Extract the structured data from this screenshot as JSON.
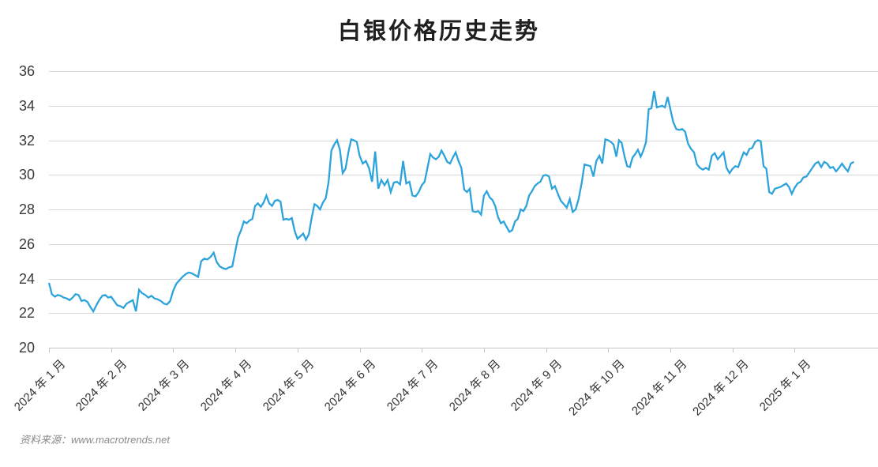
{
  "title": "白银价格历史走势",
  "source_note": "资料来源：www.macrotrends.net",
  "colors": {
    "line": "#2da3dc",
    "grid": "#d9d9d9",
    "axis_line": "#c4c4c4",
    "tick": "#c4c4c4",
    "axis_label": "#3a3a3a",
    "title_text": "#1f1f1f",
    "source_text": "#8a8a8a",
    "background": "#ffffff"
  },
  "chart_data": {
    "type": "line",
    "title": "白银价格历史走势",
    "xlabel": "",
    "ylabel": "",
    "ylim": [
      20,
      36
    ],
    "y_ticks": [
      20,
      22,
      24,
      26,
      28,
      30,
      32,
      34,
      36
    ],
    "grid": "horizontal",
    "legend": "none",
    "line_style": "solid",
    "series": [
      {
        "name": "白银价格",
        "months": [
          {
            "label": "2024 年 1 月",
            "values": [
              23.75,
              23.1,
              22.95,
              23.05,
              23.0,
              22.9,
              22.85,
              22.75,
              22.9,
              23.1,
              23.05,
              22.7,
              22.75,
              22.65,
              22.35,
              22.1,
              22.45,
              22.75,
              23.0,
              23.05,
              22.9
            ]
          },
          {
            "label": "2024 年 2 月",
            "values": [
              22.95,
              22.7,
              22.45,
              22.4,
              22.3,
              22.55,
              22.65,
              22.75,
              22.1,
              23.35,
              23.15,
              23.05,
              22.9,
              23.0,
              22.85,
              22.8,
              22.7,
              22.55,
              22.5,
              22.7
            ]
          },
          {
            "label": "2024 年 3 月",
            "values": [
              23.3,
              23.7,
              23.9,
              24.1,
              24.25,
              24.35,
              24.3,
              24.2,
              24.1,
              25.0,
              25.15,
              25.1,
              25.25,
              25.5,
              24.95,
              24.7,
              24.6,
              24.55,
              24.65,
              24.7
            ]
          },
          {
            "label": "2024 年 4 月",
            "values": [
              25.6,
              26.4,
              26.8,
              27.3,
              27.2,
              27.35,
              27.45,
              28.2,
              28.35,
              28.15,
              28.4,
              28.8,
              28.35,
              28.2,
              28.5,
              28.55,
              28.45,
              27.4,
              27.45,
              27.4,
              27.5,
              26.75
            ]
          },
          {
            "label": "2024 年 5 月",
            "values": [
              26.3,
              26.45,
              26.6,
              26.25,
              26.55,
              27.5,
              28.3,
              28.2,
              28.0,
              28.4,
              28.65,
              29.6,
              31.4,
              31.75,
              32.0,
              31.45,
              30.1,
              30.35,
              31.3,
              32.05,
              32.0,
              31.9
            ]
          },
          {
            "label": "2024 年 6 月",
            "values": [
              31.1,
              30.65,
              30.8,
              30.4,
              29.6,
              31.35,
              29.2,
              29.7,
              29.4,
              29.7,
              29.0,
              29.55,
              29.6,
              29.45,
              30.8,
              29.5,
              29.6,
              28.8,
              28.75,
              29.0
            ]
          },
          {
            "label": "2024 年 7 月",
            "values": [
              29.4,
              29.6,
              30.4,
              31.2,
              31.0,
              30.9,
              31.05,
              31.4,
              31.1,
              30.75,
              30.65,
              31.0,
              31.3,
              30.8,
              30.4,
              29.15,
              29.0,
              29.2,
              27.9,
              27.85,
              27.9,
              27.7
            ]
          },
          {
            "label": "2024 年 8 月",
            "values": [
              28.8,
              29.05,
              28.7,
              28.55,
              28.2,
              27.55,
              27.2,
              27.3,
              27.0,
              26.7,
              26.8,
              27.3,
              27.45,
              28.0,
              27.9,
              28.2,
              28.8,
              29.05,
              29.35,
              29.5,
              29.6,
              29.95
            ]
          },
          {
            "label": "2024 年 9 月",
            "values": [
              30.0,
              29.9,
              29.2,
              29.35,
              28.9,
              28.5,
              28.3,
              28.1,
              28.6,
              27.85,
              28.0,
              28.6,
              29.5,
              30.6,
              30.55,
              30.5,
              29.9,
              30.8,
              31.1,
              30.65,
              32.05
            ]
          },
          {
            "label": "2024 年 10 月",
            "values": [
              32.0,
              31.9,
              31.75,
              31.05,
              32.0,
              31.85,
              31.1,
              30.5,
              30.45,
              31.0,
              31.2,
              31.45,
              31.05,
              31.4,
              31.9,
              33.8,
              33.85,
              34.85,
              33.9,
              33.95,
              34.0,
              33.9,
              34.5
            ]
          },
          {
            "label": "2024 年 11 月",
            "values": [
              33.8,
              33.05,
              32.65,
              32.6,
              32.65,
              32.5,
              31.8,
              31.5,
              31.3,
              30.6,
              30.4,
              30.3,
              30.4,
              30.3,
              31.1,
              31.25,
              30.9,
              31.1,
              31.3,
              30.4,
              30.1
            ]
          },
          {
            "label": "2024 年 12 月",
            "values": [
              30.35,
              30.5,
              30.45,
              30.9,
              31.3,
              31.15,
              31.5,
              31.55,
              31.9,
              32.0,
              31.95,
              30.5,
              30.35,
              29.0,
              28.9,
              29.2,
              29.25,
              29.3,
              29.4,
              29.5,
              29.3,
              28.9
            ]
          },
          {
            "label": "2025 年 1 月",
            "values": [
              29.25,
              29.5,
              29.6,
              29.85,
              29.9,
              30.15,
              30.4,
              30.65,
              30.75,
              30.45,
              30.75,
              30.65,
              30.4,
              30.45,
              30.2,
              30.4,
              30.65,
              30.4,
              30.2,
              30.65,
              30.75
            ]
          }
        ]
      }
    ]
  }
}
